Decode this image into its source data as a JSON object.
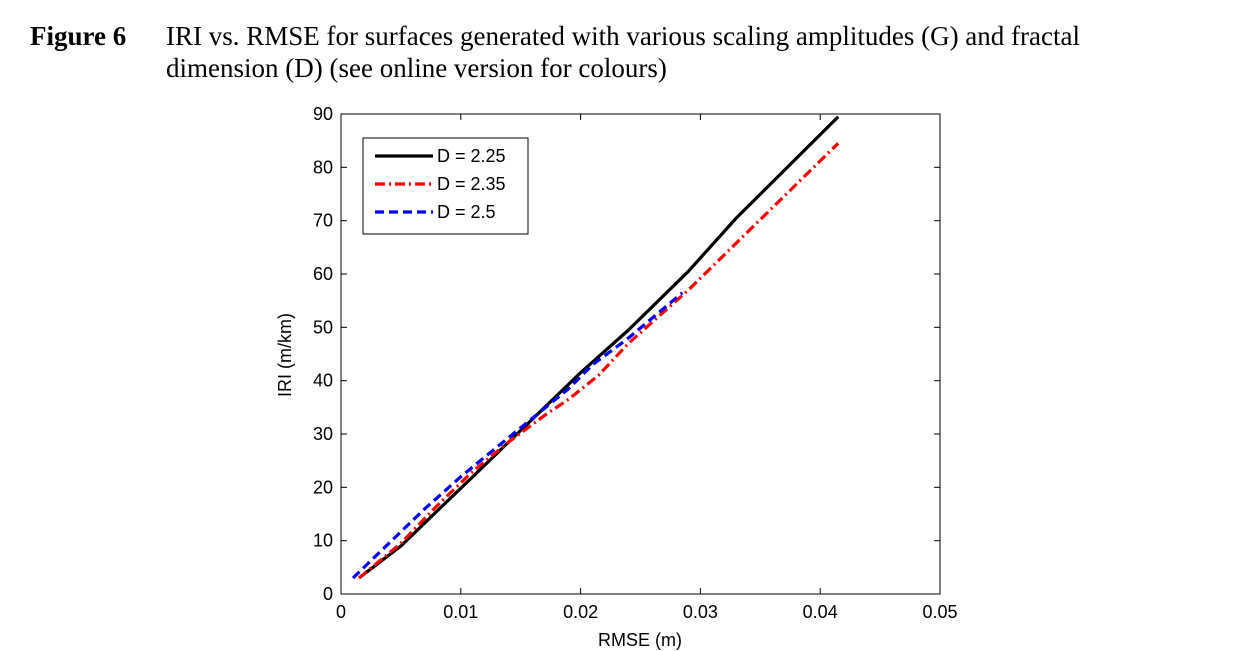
{
  "caption": {
    "label": "Figure 6",
    "line1": "IRI vs. RMSE for surfaces generated with various scaling amplitudes (G) and fractal",
    "line2": "dimension (D) (see online version for colours)"
  },
  "chart_data": {
    "type": "line",
    "title": "",
    "xlabel": "RMSE (m)",
    "ylabel": "IRI (m/km)",
    "xlim": [
      0,
      0.05
    ],
    "ylim": [
      0,
      90
    ],
    "xticks": [
      0,
      0.01,
      0.02,
      0.03,
      0.04,
      0.05
    ],
    "xtick_labels": [
      "0",
      "0.01",
      "0.02",
      "0.03",
      "0.04",
      "0.05"
    ],
    "yticks": [
      0,
      10,
      20,
      30,
      40,
      50,
      60,
      70,
      80,
      90
    ],
    "ytick_labels": [
      "0",
      "10",
      "20",
      "30",
      "40",
      "50",
      "60",
      "70",
      "80",
      "90"
    ],
    "grid": false,
    "legend_position": "top-left",
    "series": [
      {
        "name": "D = 2.25",
        "color": "#000000",
        "style": "solid",
        "x": [
          0.0015,
          0.005,
          0.008,
          0.011,
          0.014,
          0.017,
          0.02,
          0.024,
          0.029,
          0.033,
          0.0415
        ],
        "y": [
          3,
          9,
          15.5,
          22,
          28.5,
          35,
          41.5,
          49.5,
          60.5,
          70.5,
          89.5
        ]
      },
      {
        "name": "D = 2.35",
        "color": "#ff0000",
        "style": "dash-dot",
        "x": [
          0.0015,
          0.005,
          0.008,
          0.011,
          0.014,
          0.017,
          0.019,
          0.0215,
          0.024,
          0.029,
          0.034,
          0.0415
        ],
        "y": [
          3,
          9.5,
          16.5,
          23,
          28.5,
          33.5,
          36.5,
          41,
          47,
          57,
          68,
          84.5
        ]
      },
      {
        "name": "D = 2.5",
        "color": "#0000ff",
        "style": "dashed",
        "x": [
          0.001,
          0.004,
          0.007,
          0.01,
          0.013,
          0.016,
          0.019,
          0.021,
          0.024,
          0.0285
        ],
        "y": [
          3,
          9.5,
          16,
          22,
          27.5,
          33,
          38.5,
          43,
          48,
          56.5
        ]
      }
    ]
  }
}
